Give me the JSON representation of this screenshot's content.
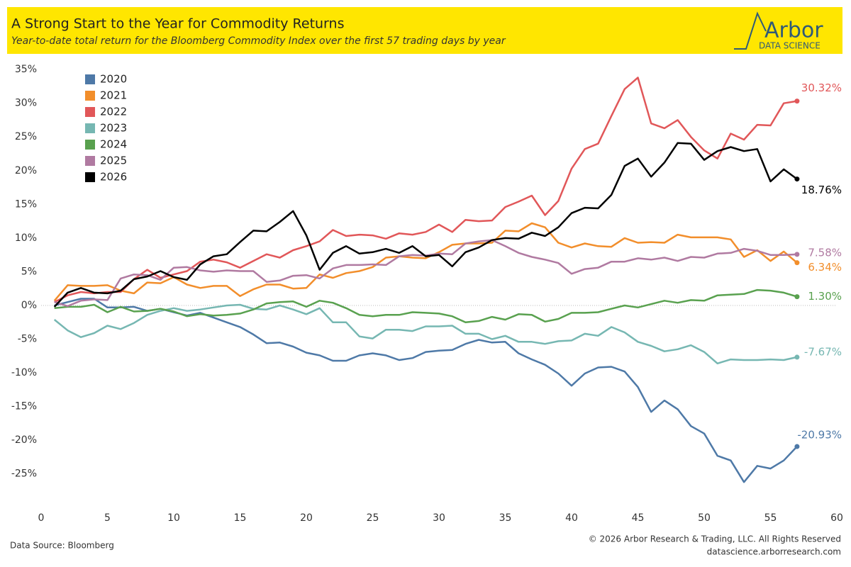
{
  "chart_data": {
    "type": "line",
    "title": "A Strong Start to the Year for Commodity Returns",
    "subtitle": "Year-to-date total return for the Bloomberg Commodity Index over the first 57 trading days by year",
    "logo": "Arbor",
    "logo_sub": "DATA SCIENCE",
    "source": "Data Source: Bloomberg",
    "copyright": "© 2026 Arbor Research & Trading, LLC. All Rights Reserved",
    "url": "datascience.arborresearch.com",
    "xlim": [
      0,
      60
    ],
    "xticks": [
      0,
      5,
      10,
      15,
      20,
      25,
      30,
      35,
      40,
      45,
      50,
      55,
      60
    ],
    "ylim": [
      -30,
      36
    ],
    "yticks": [
      {
        "value": -25,
        "label": "-25%"
      },
      {
        "value": -20,
        "label": "-20%"
      },
      {
        "value": -15,
        "label": "-15%"
      },
      {
        "value": -10,
        "label": "-10%"
      },
      {
        "value": -5,
        "label": "-5%"
      },
      {
        "value": 0,
        "label": "0%"
      },
      {
        "value": 5,
        "label": "5%"
      },
      {
        "value": 10,
        "label": "10%"
      },
      {
        "value": 15,
        "label": "15%"
      },
      {
        "value": 20,
        "label": "20%"
      },
      {
        "value": 25,
        "label": "25%"
      },
      {
        "value": 30,
        "label": "30%"
      },
      {
        "value": 35,
        "label": "35%"
      }
    ],
    "zero_line": true,
    "legend": "top-left",
    "x": [
      1,
      2,
      3,
      4,
      5,
      6,
      7,
      8,
      9,
      10,
      11,
      12,
      13,
      14,
      15,
      16,
      17,
      18,
      19,
      20,
      21,
      22,
      23,
      24,
      25,
      26,
      27,
      28,
      29,
      30,
      31,
      32,
      33,
      34,
      35,
      36,
      37,
      38,
      39,
      40,
      41,
      42,
      43,
      44,
      45,
      46,
      47,
      48,
      49,
      50,
      51,
      52,
      53,
      54,
      55,
      56,
      57
    ],
    "series": [
      {
        "name": "2020",
        "color": "#4e79a7",
        "values": [
          0,
          0.5,
          1,
          1,
          -0.3,
          -0.3,
          -0.2,
          -0.8,
          -0.5,
          -1,
          -1.5,
          -1.1,
          -1.8,
          -2.5,
          -3.2,
          -4.3,
          -5.6,
          -5.5,
          -6.1,
          -7,
          -7.4,
          -8.2,
          -8.2,
          -7.4,
          -7.1,
          -7.4,
          -8.1,
          -7.8,
          -6.9,
          -6.7,
          -6.6,
          -5.7,
          -5.1,
          -5.5,
          -5.4,
          -7.1,
          -8,
          -8.8,
          -10.1,
          -11.9,
          -10.1,
          -9.2,
          -9.1,
          -9.8,
          -12.1,
          -15.8,
          -14.1,
          -15.4,
          -17.9,
          -19,
          -22.3,
          -23,
          -26.2,
          -23.8,
          -24.2,
          -23,
          -20.93
        ],
        "value_labels": [
          null,
          null,
          null,
          null,
          null,
          null,
          null,
          null,
          null,
          null,
          null,
          null,
          null,
          null,
          null,
          null,
          null,
          null,
          null,
          null,
          null,
          null,
          null,
          null,
          null,
          null,
          null,
          null,
          null,
          null,
          null,
          null,
          null,
          null,
          null,
          null,
          null,
          null,
          null,
          null,
          null,
          null,
          null,
          null,
          null,
          null,
          null,
          null,
          null,
          null,
          null,
          null,
          null,
          null,
          null,
          null,
          "-20.93%"
        ]
      },
      {
        "name": "2021",
        "color": "#f28e2b",
        "values": [
          0.7,
          3,
          2.9,
          2.9,
          3,
          2.2,
          1.8,
          3.4,
          3.3,
          4.2,
          3.1,
          2.6,
          2.9,
          2.9,
          1.4,
          2.4,
          3.1,
          3.1,
          2.5,
          2.6,
          4.6,
          4.1,
          4.8,
          5.1,
          5.7,
          7.1,
          7.3,
          7.1,
          7,
          7.9,
          9,
          9.2,
          9.2,
          9.3,
          11.1,
          11,
          12.2,
          11.6,
          9.3,
          8.6,
          9.2,
          8.8,
          8.7,
          10,
          9.3,
          9.4,
          9.3,
          10.5,
          10.1,
          10.1,
          10.1,
          9.8,
          7.2,
          8.2,
          6.6,
          8,
          6.34
        ],
        "value_labels": [
          null,
          null,
          null,
          null,
          null,
          null,
          null,
          null,
          null,
          null,
          null,
          null,
          null,
          null,
          null,
          null,
          null,
          null,
          null,
          null,
          null,
          null,
          null,
          null,
          null,
          null,
          null,
          null,
          null,
          null,
          null,
          null,
          null,
          null,
          null,
          null,
          null,
          null,
          null,
          null,
          null,
          null,
          null,
          null,
          null,
          null,
          null,
          null,
          null,
          null,
          null,
          null,
          null,
          null,
          null,
          null,
          "6.34%"
        ]
      },
      {
        "name": "2022",
        "color": "#e15759",
        "values": [
          0.5,
          1.5,
          2,
          1.8,
          2,
          2,
          3.9,
          5.3,
          4.1,
          4.6,
          5.1,
          6.5,
          6.8,
          6.4,
          5.6,
          6.6,
          7.6,
          7.1,
          8.2,
          8.8,
          9.5,
          11.2,
          10.3,
          10.5,
          10.4,
          9.9,
          10.7,
          10.5,
          10.9,
          12,
          10.9,
          12.7,
          12.5,
          12.6,
          14.6,
          15.4,
          16.3,
          13.4,
          15.5,
          20.3,
          23.2,
          24,
          28.1,
          32.1,
          33.8,
          27,
          26.3,
          27.5,
          25,
          23,
          21.8,
          25.5,
          24.6,
          26.8,
          26.7,
          30,
          30.32
        ],
        "value_labels": [
          null,
          null,
          null,
          null,
          null,
          null,
          null,
          null,
          null,
          null,
          null,
          null,
          null,
          null,
          null,
          null,
          null,
          null,
          null,
          null,
          null,
          null,
          null,
          null,
          null,
          null,
          null,
          null,
          null,
          null,
          null,
          null,
          null,
          null,
          null,
          null,
          null,
          null,
          null,
          null,
          null,
          null,
          null,
          null,
          null,
          null,
          null,
          null,
          null,
          null,
          null,
          null,
          null,
          null,
          null,
          null,
          "30.32%"
        ]
      },
      {
        "name": "2023",
        "color": "#76b7b2",
        "values": [
          -2.1,
          -3.7,
          -4.7,
          -4.1,
          -3,
          -3.5,
          -2.6,
          -1.4,
          -0.8,
          -0.4,
          -0.8,
          -0.6,
          -0.3,
          0,
          0.1,
          -0.5,
          -0.6,
          0,
          -0.6,
          -1.3,
          -0.4,
          -2.5,
          -2.5,
          -4.6,
          -4.9,
          -3.6,
          -3.6,
          -3.8,
          -3.1,
          -3.1,
          -3,
          -4.2,
          -4.2,
          -5,
          -4.5,
          -5.4,
          -5.4,
          -5.7,
          -5.3,
          -5.2,
          -4.2,
          -4.5,
          -3.2,
          -4,
          -5.4,
          -6,
          -6.8,
          -6.5,
          -5.9,
          -6.9,
          -8.6,
          -8,
          -8.1,
          -8.1,
          -8,
          -8.1,
          -7.67
        ],
        "value_labels": [
          null,
          null,
          null,
          null,
          null,
          null,
          null,
          null,
          null,
          null,
          null,
          null,
          null,
          null,
          null,
          null,
          null,
          null,
          null,
          null,
          null,
          null,
          null,
          null,
          null,
          null,
          null,
          null,
          null,
          null,
          null,
          null,
          null,
          null,
          null,
          null,
          null,
          null,
          null,
          null,
          null,
          null,
          null,
          null,
          null,
          null,
          null,
          null,
          null,
          null,
          null,
          null,
          null,
          null,
          null,
          null,
          "-7.67%"
        ]
      },
      {
        "name": "2024",
        "color": "#59a14f",
        "values": [
          -0.4,
          -0.2,
          -0.2,
          0.1,
          -1,
          -0.2,
          -0.9,
          -0.8,
          -0.5,
          -0.9,
          -1.6,
          -1.3,
          -1.5,
          -1.4,
          -1.2,
          -0.6,
          0.3,
          0.5,
          0.6,
          -0.2,
          0.7,
          0.4,
          -0.4,
          -1.4,
          -1.6,
          -1.4,
          -1.4,
          -1,
          -1.1,
          -1.2,
          -1.6,
          -2.5,
          -2.3,
          -1.7,
          -2.1,
          -1.3,
          -1.4,
          -2.4,
          -2,
          -1.1,
          -1.1,
          -1,
          -0.5,
          0,
          -0.3,
          0.2,
          0.7,
          0.4,
          0.8,
          0.7,
          1.5,
          1.6,
          1.7,
          2.3,
          2.2,
          1.9,
          1.3
        ],
        "value_labels": [
          null,
          null,
          null,
          null,
          null,
          null,
          null,
          null,
          null,
          null,
          null,
          null,
          null,
          null,
          null,
          null,
          null,
          null,
          null,
          null,
          null,
          null,
          null,
          null,
          null,
          null,
          null,
          null,
          null,
          null,
          null,
          null,
          null,
          null,
          null,
          null,
          null,
          null,
          null,
          null,
          null,
          null,
          null,
          null,
          null,
          null,
          null,
          null,
          null,
          null,
          null,
          null,
          null,
          null,
          null,
          null,
          "1.30%"
        ]
      },
      {
        "name": "2025",
        "color": "#b07aa1",
        "values": [
          0.5,
          -0.1,
          0.7,
          0.9,
          0.8,
          4,
          4.6,
          4.5,
          3.8,
          5.6,
          5.7,
          5.2,
          5,
          5.2,
          5.1,
          5.1,
          3.5,
          3.7,
          4.4,
          4.5,
          4,
          5.5,
          6,
          6,
          6.1,
          6,
          7.3,
          7.5,
          7.4,
          7.7,
          7.6,
          9.2,
          9.5,
          9.7,
          8.8,
          7.8,
          7.2,
          6.8,
          6.3,
          4.7,
          5.4,
          5.6,
          6.5,
          6.5,
          7,
          6.8,
          7.1,
          6.6,
          7.2,
          7.1,
          7.7,
          7.8,
          8.4,
          8.1,
          7.5,
          7.5,
          7.58
        ],
        "value_labels": [
          null,
          null,
          null,
          null,
          null,
          null,
          null,
          null,
          null,
          null,
          null,
          null,
          null,
          null,
          null,
          null,
          null,
          null,
          null,
          null,
          null,
          null,
          null,
          null,
          null,
          null,
          null,
          null,
          null,
          null,
          null,
          null,
          null,
          null,
          null,
          null,
          null,
          null,
          null,
          null,
          null,
          null,
          null,
          null,
          null,
          null,
          null,
          null,
          null,
          null,
          null,
          null,
          null,
          null,
          null,
          null,
          "7.58%"
        ]
      },
      {
        "name": "2026",
        "color": "#000000",
        "values": [
          -0.2,
          1.9,
          2.6,
          1.9,
          1.8,
          2.2,
          3.9,
          4.3,
          5.1,
          4.2,
          3.8,
          6.1,
          7.3,
          7.6,
          9.4,
          11.1,
          11,
          12.4,
          14,
          10.4,
          5.3,
          7.8,
          8.8,
          7.7,
          7.9,
          8.4,
          7.8,
          8.8,
          7.3,
          7.5,
          5.8,
          7.9,
          8.6,
          9.7,
          10,
          9.9,
          10.8,
          10.3,
          11.6,
          13.7,
          14.5,
          14.4,
          16.4,
          20.7,
          21.8,
          19.1,
          21.2,
          24.1,
          24,
          21.6,
          22.9,
          23.5,
          22.9,
          23.2,
          18.4,
          20.2,
          18.76
        ],
        "value_labels": [
          null,
          null,
          null,
          null,
          null,
          null,
          null,
          null,
          null,
          null,
          null,
          null,
          null,
          null,
          null,
          null,
          null,
          null,
          null,
          null,
          null,
          null,
          null,
          null,
          null,
          null,
          null,
          null,
          null,
          null,
          null,
          null,
          null,
          null,
          null,
          null,
          null,
          null,
          null,
          null,
          null,
          null,
          null,
          null,
          null,
          null,
          null,
          null,
          null,
          null,
          null,
          null,
          null,
          null,
          null,
          null,
          "18.76%"
        ]
      }
    ]
  }
}
